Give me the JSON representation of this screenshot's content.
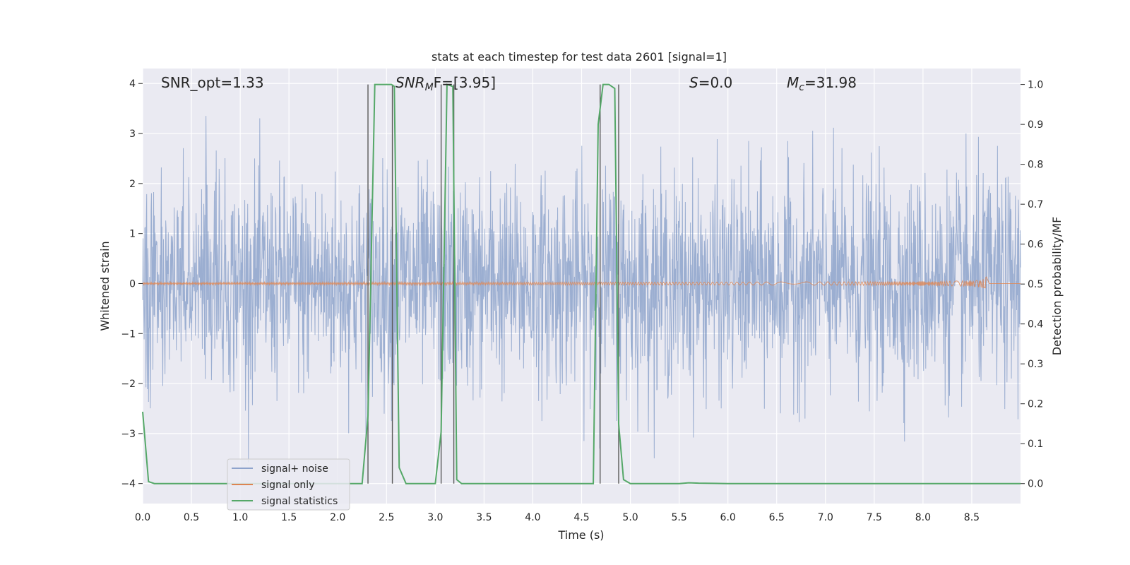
{
  "chart_data": {
    "type": "line",
    "title": "stats at each timestep for test data 2601 [signal=1]",
    "xlabel": "Time (s)",
    "ylabel_left": "Whitened strain",
    "ylabel_right": "Detection probability/MF",
    "xlim": [
      0.0,
      9.0
    ],
    "ylim_left": [
      -4.4,
      4.3
    ],
    "ylim_right": [
      -0.05,
      1.04
    ],
    "grid": true,
    "background": "#eaeaf2",
    "x_ticks": [
      "0.0",
      "0.5",
      "1.0",
      "1.5",
      "2.0",
      "2.5",
      "3.0",
      "3.5",
      "4.0",
      "4.5",
      "5.0",
      "5.5",
      "6.0",
      "6.5",
      "7.0",
      "7.5",
      "8.0",
      "8.5"
    ],
    "y_left_ticks": [
      "−4",
      "−3",
      "−2",
      "−1",
      "0",
      "1",
      "2",
      "3",
      "4"
    ],
    "y_right_ticks": [
      "0.0",
      "0.1",
      "0.2",
      "0.3",
      "0.4",
      "0.5",
      "0.6",
      "0.7",
      "0.8",
      "0.9",
      "1.0"
    ],
    "annotations": {
      "snr_opt": "SNR_opt=1.33",
      "snr_mf_base": "SNR",
      "snr_mf_sub": "M",
      "snr_mf_rest": "F=[3.95]",
      "s_var": "S",
      "s_rest": "=0.0",
      "mc_var": "M",
      "mc_sub": "c",
      "mc_rest": "=31.98"
    },
    "legend": {
      "location": "lower-left",
      "entries": [
        {
          "label": "signal+ noise",
          "color": "#8ea3cc"
        },
        {
          "label": "signal only",
          "color": "#dd8452"
        },
        {
          "label": "signal statistics",
          "color": "#55a868"
        }
      ]
    },
    "series": [
      {
        "name": "signal+ noise",
        "color": "#4c72b0",
        "axis": "left",
        "description_values": {
          "typical_band": [
            -1.6,
            1.6
          ],
          "peaks_max": 3.9,
          "peaks_min": -3.95
        }
      },
      {
        "name": "signal only",
        "color": "#dd8452",
        "axis": "left",
        "chirp_peak_time": 8.65,
        "chirp_peak_amplitude": 0.35
      },
      {
        "name": "signal statistics",
        "color": "#55a868",
        "axis": "right",
        "x": [
          0.0,
          0.06,
          0.12,
          2.25,
          2.31,
          2.38,
          2.55,
          2.58,
          2.63,
          2.7,
          3.0,
          3.06,
          3.12,
          3.18,
          3.22,
          3.27,
          3.33,
          4.62,
          4.67,
          4.72,
          4.78,
          4.84,
          4.88,
          4.93,
          5.0,
          5.5,
          5.6,
          5.7,
          6.0,
          9.0
        ],
        "y": [
          0.18,
          0.005,
          0.0,
          0.0,
          0.17,
          1.0,
          1.0,
          0.995,
          0.04,
          0.0,
          0.0,
          0.13,
          1.0,
          0.995,
          0.01,
          0.0,
          0.0,
          0.0,
          0.9,
          1.0,
          1.0,
          0.99,
          0.15,
          0.01,
          0.0,
          0.0,
          0.002,
          0.001,
          0.0,
          0.0
        ]
      }
    ],
    "vertical_lines": {
      "color": "#5a5a5a",
      "x": [
        2.31,
        2.56,
        3.06,
        3.19,
        4.69,
        4.88
      ]
    }
  }
}
